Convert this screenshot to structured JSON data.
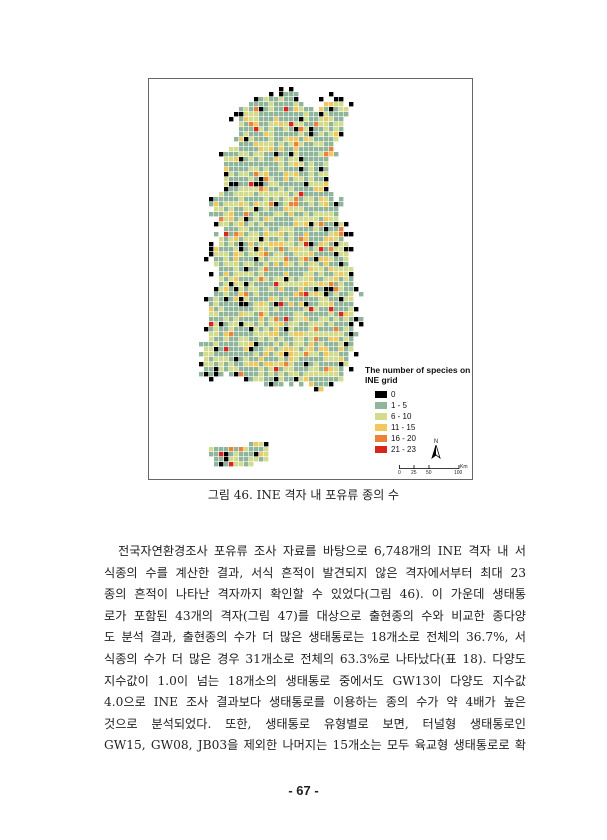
{
  "figure": {
    "legend": {
      "title": "The number of species on INE grid",
      "items": [
        {
          "label": "0",
          "color": "#000000"
        },
        {
          "label": "1 - 5",
          "color": "#8fb59a"
        },
        {
          "label": "6 - 10",
          "color": "#d3dc8c"
        },
        {
          "label": "11 - 15",
          "color": "#f2c75c"
        },
        {
          "label": "16 - 20",
          "color": "#ea8238"
        },
        {
          "label": "21 - 23",
          "color": "#d9261c"
        }
      ]
    },
    "north_label": "N",
    "scale": {
      "unit": "Km",
      "ticks": [
        "0",
        "25",
        "50",
        "100"
      ]
    }
  },
  "caption": "그림 46. INE 격자 내 포유류 종의 수",
  "body_lines": [
    "전국자연환경조사 포유류 조사 자료를 바탕으로 6,748개의 INE 격자 내 서",
    "식종의 수를 계산한 결과, 서식 흔적이 발견되지 않은 격자에서부터 최대 23",
    "종의 흔적이 나타난 격자까지 확인할 수 있었다(그림 46). 이 가운데 생태통",
    "로가 포함된 43개의 격자(그림 47)를 대상으로 출현종의 수와 비교한 종다양",
    "도 분석 결과, 출현종의 수가 더 많은 생태통로는 18개소로 전체의 36.7%, 서",
    "식종의 수가 더 많은 경우 31개소로 전체의 63.3%로 나타났다(표 18). 다양도",
    "지수값이 1.0이 넘는 18개소의 생태통로 중에서도 GW13이 다양도 지수값",
    "4.0으로 INE 조사 결과보다 생태통로를 이용하는 종의 수가 약 4배가 높은",
    "것으로 분석되었다. 또한, 생태통로 유형별로 보면, 터널형 생태통로인",
    "GW15, GW08, JB03을 제외한 나머지는 15개소는 모두 육교형 생태통로로 확"
  ],
  "page_number": "- 67 -"
}
